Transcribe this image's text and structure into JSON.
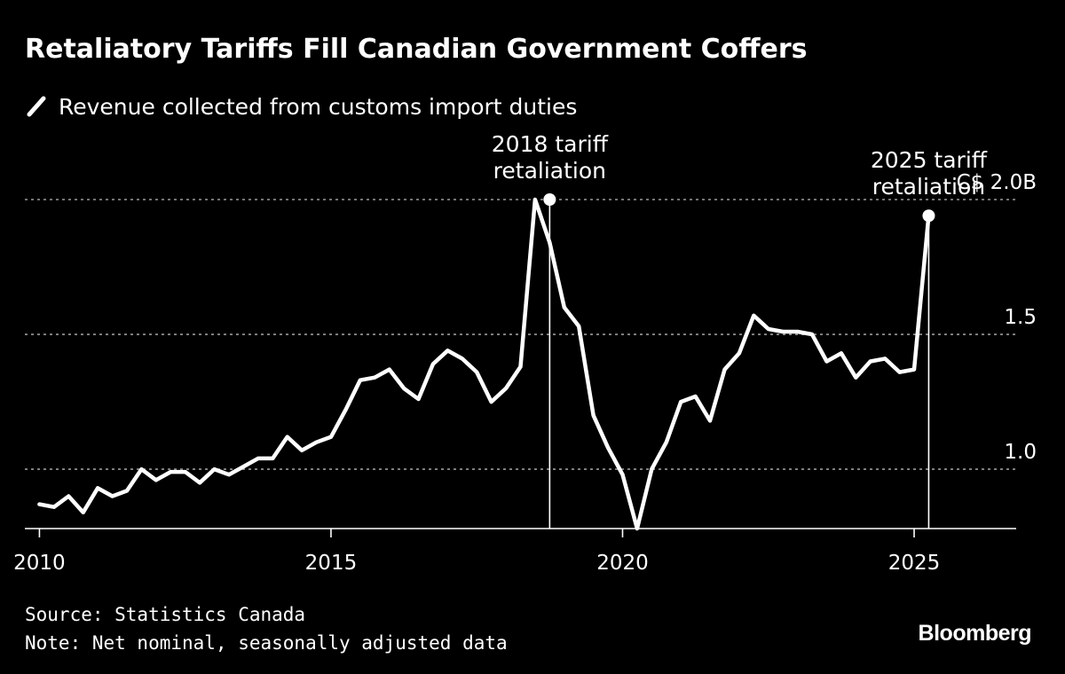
{
  "title": "Retaliatory Tariffs Fill Canadian Government Coffers",
  "source": "Source: Statistics Canada",
  "note": "Note: Net nominal, seasonally adjusted data",
  "brand": "Bloomberg",
  "colors": {
    "background": "#000000",
    "line": "#ffffff",
    "grid": "#9a9a9a"
  },
  "chart_data": {
    "type": "line",
    "title": "Retaliatory Tariffs Fill Canadian Government Coffers",
    "xlabel": "",
    "ylabel": "",
    "unit_label": "C$ 2.0B",
    "xlim": [
      2009.75,
      2026.75
    ],
    "ylim": [
      0.78,
      2.0
    ],
    "grid": true,
    "gridlines": [
      1.0,
      1.5,
      2.0
    ],
    "y_tick_labels": [
      {
        "value": 2.0,
        "label": "C$ 2.0B"
      },
      {
        "value": 1.5,
        "label": "1.5"
      },
      {
        "value": 1.0,
        "label": "1.0"
      }
    ],
    "x_ticks": [
      {
        "value": 2010,
        "label": "2010"
      },
      {
        "value": 2015,
        "label": "2015"
      },
      {
        "value": 2020,
        "label": "2020"
      },
      {
        "value": 2025,
        "label": "2025"
      }
    ],
    "series": [
      {
        "name": "Revenue collected from customs import duties",
        "x": [
          2010.0,
          2010.25,
          2010.5,
          2010.75,
          2011.0,
          2011.25,
          2011.5,
          2011.75,
          2012.0,
          2012.25,
          2012.5,
          2012.75,
          2013.0,
          2013.25,
          2013.5,
          2013.75,
          2014.0,
          2014.25,
          2014.5,
          2014.75,
          2015.0,
          2015.25,
          2015.5,
          2015.75,
          2016.0,
          2016.25,
          2016.5,
          2016.75,
          2017.0,
          2017.25,
          2017.5,
          2017.75,
          2018.0,
          2018.25,
          2018.5,
          2018.75,
          2019.0,
          2019.25,
          2019.5,
          2019.75,
          2020.0,
          2020.25,
          2020.5,
          2020.75,
          2021.0,
          2021.25,
          2021.5,
          2021.75,
          2022.0,
          2022.25,
          2022.5,
          2022.75,
          2023.0,
          2023.25,
          2023.5,
          2023.75,
          2024.0,
          2024.25,
          2024.5,
          2024.75,
          2025.0,
          2025.25
        ],
        "values": [
          0.87,
          0.86,
          0.9,
          0.84,
          0.93,
          0.9,
          0.92,
          1.0,
          0.96,
          0.99,
          0.99,
          0.95,
          1.0,
          0.98,
          1.01,
          1.04,
          1.04,
          1.12,
          1.07,
          1.1,
          1.12,
          1.22,
          1.33,
          1.34,
          1.37,
          1.3,
          1.26,
          1.39,
          1.44,
          1.41,
          1.36,
          1.25,
          1.3,
          1.38,
          2.0,
          1.84,
          1.6,
          1.53,
          1.2,
          1.08,
          0.98,
          0.78,
          1.0,
          1.1,
          1.25,
          1.27,
          1.18,
          1.37,
          1.43,
          1.57,
          1.52,
          1.51,
          1.51,
          1.5,
          1.4,
          1.43,
          1.34,
          1.4,
          1.41,
          1.36,
          1.37,
          1.94
        ]
      }
    ],
    "annotations": [
      {
        "x": 2018.75,
        "value": 2.0,
        "label_lines": [
          "2018 tariff",
          "retaliation"
        ]
      },
      {
        "x": 2025.25,
        "value": 1.94,
        "label_lines": [
          "2025 tariff",
          "retaliation"
        ]
      }
    ]
  }
}
